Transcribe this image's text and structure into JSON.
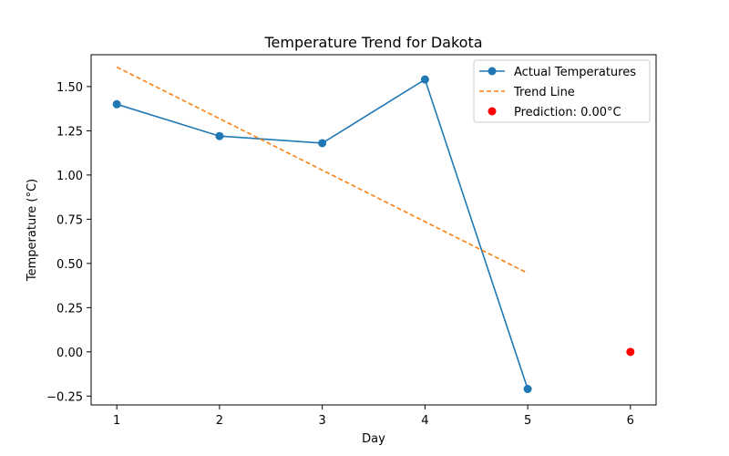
{
  "chart_data": {
    "type": "line",
    "title": "Temperature Trend for Dakota",
    "xlabel": "Day",
    "ylabel": "Temperature (°C)",
    "xlim": [
      0.75,
      6.25
    ],
    "ylim": [
      -0.3,
      1.68
    ],
    "x_ticks": [
      1,
      2,
      3,
      4,
      5,
      6
    ],
    "y_ticks": [
      -0.25,
      0.0,
      0.25,
      0.5,
      0.75,
      1.0,
      1.25,
      1.5
    ],
    "y_tick_labels": [
      "−0.25",
      "0.00",
      "0.25",
      "0.50",
      "0.75",
      "1.00",
      "1.25",
      "1.50"
    ],
    "grid": false,
    "legend_position": "top-right",
    "series": [
      {
        "name": "Actual Temperatures",
        "kind": "line-markers",
        "color": "#1f77b4",
        "x": [
          1,
          2,
          3,
          4,
          5
        ],
        "y": [
          1.4,
          1.22,
          1.18,
          1.54,
          -0.21
        ]
      },
      {
        "name": "Trend Line",
        "kind": "dashed-line",
        "color": "#ff7f0e",
        "x": [
          1,
          5
        ],
        "y": [
          1.61,
          0.445
        ]
      },
      {
        "name": "Prediction: 0.00°C",
        "kind": "scatter",
        "color": "#ff0000",
        "x": [
          6
        ],
        "y": [
          0.0
        ]
      }
    ]
  }
}
